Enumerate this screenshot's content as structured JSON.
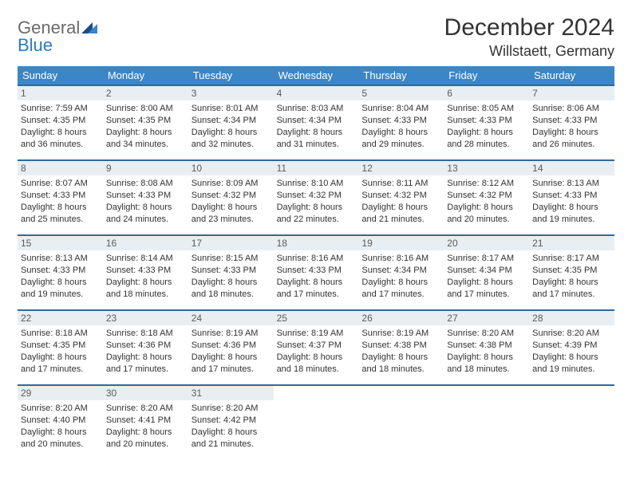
{
  "brand": {
    "part1": "General",
    "part2": "Blue"
  },
  "title": "December 2024",
  "location": "Willstaett, Germany",
  "colors": {
    "header_bg": "#3b86c6",
    "header_text": "#ffffff",
    "week_border": "#2f6aa0",
    "daynum_bg": "#e9eef2",
    "brand_gray": "#6b6b6b",
    "brand_blue": "#2a7cbf",
    "text": "#333333"
  },
  "day_names": [
    "Sunday",
    "Monday",
    "Tuesday",
    "Wednesday",
    "Thursday",
    "Friday",
    "Saturday"
  ],
  "weeks": [
    [
      {
        "n": "1",
        "sr": "Sunrise: 7:59 AM",
        "ss": "Sunset: 4:35 PM",
        "d1": "Daylight: 8 hours",
        "d2": "and 36 minutes."
      },
      {
        "n": "2",
        "sr": "Sunrise: 8:00 AM",
        "ss": "Sunset: 4:35 PM",
        "d1": "Daylight: 8 hours",
        "d2": "and 34 minutes."
      },
      {
        "n": "3",
        "sr": "Sunrise: 8:01 AM",
        "ss": "Sunset: 4:34 PM",
        "d1": "Daylight: 8 hours",
        "d2": "and 32 minutes."
      },
      {
        "n": "4",
        "sr": "Sunrise: 8:03 AM",
        "ss": "Sunset: 4:34 PM",
        "d1": "Daylight: 8 hours",
        "d2": "and 31 minutes."
      },
      {
        "n": "5",
        "sr": "Sunrise: 8:04 AM",
        "ss": "Sunset: 4:33 PM",
        "d1": "Daylight: 8 hours",
        "d2": "and 29 minutes."
      },
      {
        "n": "6",
        "sr": "Sunrise: 8:05 AM",
        "ss": "Sunset: 4:33 PM",
        "d1": "Daylight: 8 hours",
        "d2": "and 28 minutes."
      },
      {
        "n": "7",
        "sr": "Sunrise: 8:06 AM",
        "ss": "Sunset: 4:33 PM",
        "d1": "Daylight: 8 hours",
        "d2": "and 26 minutes."
      }
    ],
    [
      {
        "n": "8",
        "sr": "Sunrise: 8:07 AM",
        "ss": "Sunset: 4:33 PM",
        "d1": "Daylight: 8 hours",
        "d2": "and 25 minutes."
      },
      {
        "n": "9",
        "sr": "Sunrise: 8:08 AM",
        "ss": "Sunset: 4:33 PM",
        "d1": "Daylight: 8 hours",
        "d2": "and 24 minutes."
      },
      {
        "n": "10",
        "sr": "Sunrise: 8:09 AM",
        "ss": "Sunset: 4:32 PM",
        "d1": "Daylight: 8 hours",
        "d2": "and 23 minutes."
      },
      {
        "n": "11",
        "sr": "Sunrise: 8:10 AM",
        "ss": "Sunset: 4:32 PM",
        "d1": "Daylight: 8 hours",
        "d2": "and 22 minutes."
      },
      {
        "n": "12",
        "sr": "Sunrise: 8:11 AM",
        "ss": "Sunset: 4:32 PM",
        "d1": "Daylight: 8 hours",
        "d2": "and 21 minutes."
      },
      {
        "n": "13",
        "sr": "Sunrise: 8:12 AM",
        "ss": "Sunset: 4:32 PM",
        "d1": "Daylight: 8 hours",
        "d2": "and 20 minutes."
      },
      {
        "n": "14",
        "sr": "Sunrise: 8:13 AM",
        "ss": "Sunset: 4:33 PM",
        "d1": "Daylight: 8 hours",
        "d2": "and 19 minutes."
      }
    ],
    [
      {
        "n": "15",
        "sr": "Sunrise: 8:13 AM",
        "ss": "Sunset: 4:33 PM",
        "d1": "Daylight: 8 hours",
        "d2": "and 19 minutes."
      },
      {
        "n": "16",
        "sr": "Sunrise: 8:14 AM",
        "ss": "Sunset: 4:33 PM",
        "d1": "Daylight: 8 hours",
        "d2": "and 18 minutes."
      },
      {
        "n": "17",
        "sr": "Sunrise: 8:15 AM",
        "ss": "Sunset: 4:33 PM",
        "d1": "Daylight: 8 hours",
        "d2": "and 18 minutes."
      },
      {
        "n": "18",
        "sr": "Sunrise: 8:16 AM",
        "ss": "Sunset: 4:33 PM",
        "d1": "Daylight: 8 hours",
        "d2": "and 17 minutes."
      },
      {
        "n": "19",
        "sr": "Sunrise: 8:16 AM",
        "ss": "Sunset: 4:34 PM",
        "d1": "Daylight: 8 hours",
        "d2": "and 17 minutes."
      },
      {
        "n": "20",
        "sr": "Sunrise: 8:17 AM",
        "ss": "Sunset: 4:34 PM",
        "d1": "Daylight: 8 hours",
        "d2": "and 17 minutes."
      },
      {
        "n": "21",
        "sr": "Sunrise: 8:17 AM",
        "ss": "Sunset: 4:35 PM",
        "d1": "Daylight: 8 hours",
        "d2": "and 17 minutes."
      }
    ],
    [
      {
        "n": "22",
        "sr": "Sunrise: 8:18 AM",
        "ss": "Sunset: 4:35 PM",
        "d1": "Daylight: 8 hours",
        "d2": "and 17 minutes."
      },
      {
        "n": "23",
        "sr": "Sunrise: 8:18 AM",
        "ss": "Sunset: 4:36 PM",
        "d1": "Daylight: 8 hours",
        "d2": "and 17 minutes."
      },
      {
        "n": "24",
        "sr": "Sunrise: 8:19 AM",
        "ss": "Sunset: 4:36 PM",
        "d1": "Daylight: 8 hours",
        "d2": "and 17 minutes."
      },
      {
        "n": "25",
        "sr": "Sunrise: 8:19 AM",
        "ss": "Sunset: 4:37 PM",
        "d1": "Daylight: 8 hours",
        "d2": "and 18 minutes."
      },
      {
        "n": "26",
        "sr": "Sunrise: 8:19 AM",
        "ss": "Sunset: 4:38 PM",
        "d1": "Daylight: 8 hours",
        "d2": "and 18 minutes."
      },
      {
        "n": "27",
        "sr": "Sunrise: 8:20 AM",
        "ss": "Sunset: 4:38 PM",
        "d1": "Daylight: 8 hours",
        "d2": "and 18 minutes."
      },
      {
        "n": "28",
        "sr": "Sunrise: 8:20 AM",
        "ss": "Sunset: 4:39 PM",
        "d1": "Daylight: 8 hours",
        "d2": "and 19 minutes."
      }
    ],
    [
      {
        "n": "29",
        "sr": "Sunrise: 8:20 AM",
        "ss": "Sunset: 4:40 PM",
        "d1": "Daylight: 8 hours",
        "d2": "and 20 minutes."
      },
      {
        "n": "30",
        "sr": "Sunrise: 8:20 AM",
        "ss": "Sunset: 4:41 PM",
        "d1": "Daylight: 8 hours",
        "d2": "and 20 minutes."
      },
      {
        "n": "31",
        "sr": "Sunrise: 8:20 AM",
        "ss": "Sunset: 4:42 PM",
        "d1": "Daylight: 8 hours",
        "d2": "and 21 minutes."
      },
      null,
      null,
      null,
      null
    ]
  ]
}
